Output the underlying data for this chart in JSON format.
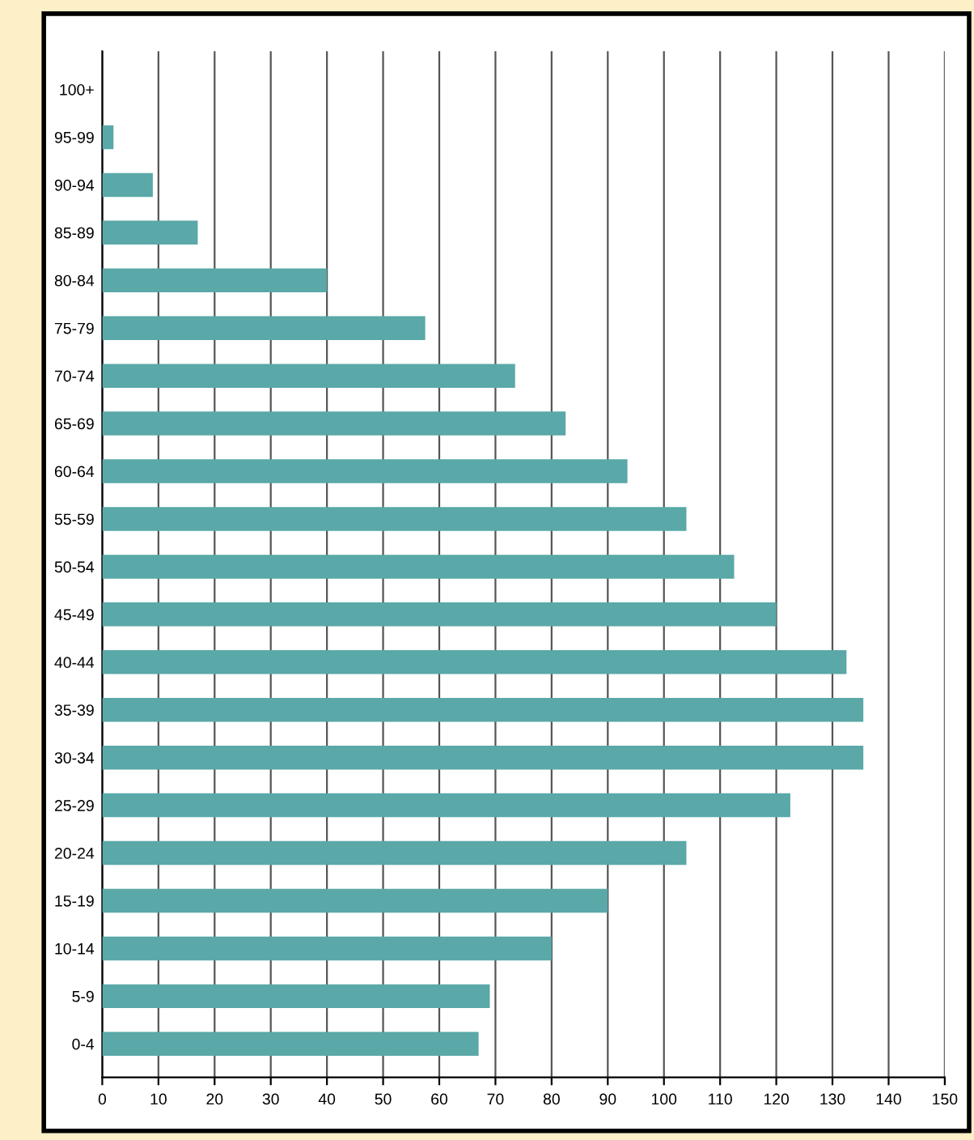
{
  "chart_data": {
    "type": "bar",
    "orientation": "horizontal",
    "categories": [
      "100+",
      "95-99",
      "90-94",
      "85-89",
      "80-84",
      "75-79",
      "70-74",
      "65-69",
      "60-64",
      "55-59",
      "50-54",
      "45-49",
      "40-44",
      "35-39",
      "30-34",
      "25-29",
      "20-24",
      "15-19",
      "10-14",
      "5-9",
      "0-4"
    ],
    "values": [
      0,
      2,
      9,
      17,
      40,
      57.5,
      73.5,
      82.5,
      93.5,
      104,
      112.5,
      120,
      132.5,
      135.5,
      135.5,
      122.5,
      104,
      90,
      80,
      69,
      67
    ],
    "color": "#5aa8a8",
    "xlim": [
      0,
      150
    ],
    "xticks": [
      0,
      10,
      20,
      30,
      40,
      50,
      60,
      70,
      80,
      90,
      100,
      110,
      120,
      130,
      140,
      150
    ],
    "grid": "x",
    "legend": false
  }
}
